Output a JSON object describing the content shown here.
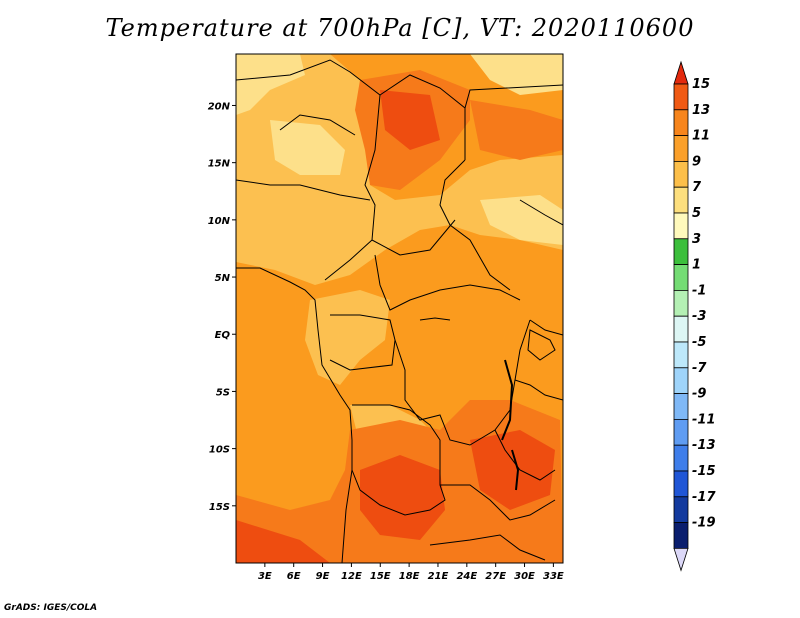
{
  "title": "Temperature at 700hPa [C], VT: 2020110600",
  "credit": "GrADS: IGES/COLA",
  "map": {
    "lon_range": [
      0,
      34
    ],
    "lat_range": [
      -20,
      24.5
    ],
    "lat_ticks": [
      "20N",
      "15N",
      "10N",
      "5N",
      "EQ",
      "5S",
      "10S",
      "15S"
    ],
    "lat_tick_values": [
      20,
      15,
      10,
      5,
      0,
      -5,
      -10,
      -15
    ],
    "lon_ticks": [
      "3E",
      "6E",
      "9E",
      "12E",
      "15E",
      "18E",
      "21E",
      "24E",
      "27E",
      "30E",
      "33E"
    ],
    "lon_tick_values": [
      3,
      6,
      9,
      12,
      15,
      18,
      21,
      24,
      27,
      30,
      33
    ],
    "colors": {
      "t5_7": "#fde08a",
      "t7_9": "#fcc050",
      "t9_11": "#fb9b1e",
      "t11_13": "#f67a1a",
      "t13_15": "#ee4d10",
      "border": "#000000"
    }
  },
  "colorbar": {
    "labels": [
      "15",
      "13",
      "11",
      "9",
      "7",
      "5",
      "3",
      "1",
      "-1",
      "-3",
      "-5",
      "-7",
      "-9",
      "-11",
      "-13",
      "-15",
      "-17",
      "-19"
    ],
    "colors": [
      "#e32a0e",
      "#f05a14",
      "#f7851c",
      "#fba02a",
      "#fcbf4a",
      "#fddf7e",
      "#fff9bc",
      "#3cbf3c",
      "#74dc74",
      "#b4f0b4",
      "#ddf6f4",
      "#bde8fa",
      "#9fd4fa",
      "#7fb8f6",
      "#5f9cf2",
      "#3f7eea",
      "#2056d6",
      "#133a9e",
      "#0a1e6e",
      "#dcd8f8"
    ]
  }
}
